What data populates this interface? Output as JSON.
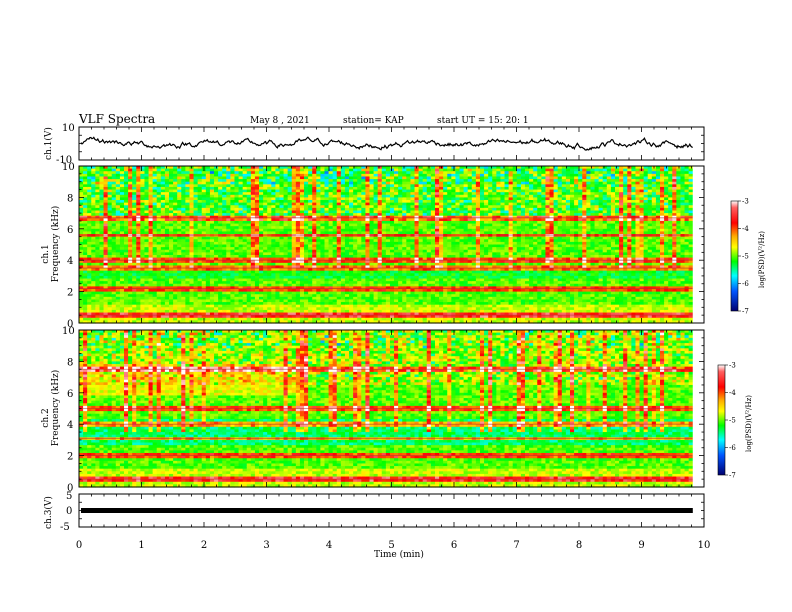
{
  "header": {
    "title": "VLF Spectra",
    "date": "May 8 , 2021",
    "station": "station= KAP",
    "start": "start  UT  =   15: 20: 1"
  },
  "panels": {
    "ch1_wave_label": "ch.1(V)",
    "ch1_spec_label1": "ch.1",
    "ch1_spec_label2": "Frequency (kHz)",
    "ch2_spec_label1": "ch.2",
    "ch2_spec_label2": "Frequency (kHz)",
    "ch3_wave_label": "ch.3(V)",
    "x_label": "Time  (min)"
  },
  "colorbar": {
    "label": "log(PSD)(V²/Hz)",
    "ticks": [
      "-3",
      "-4",
      "-5",
      "-6",
      "-7"
    ],
    "colors": [
      "#ff0000",
      "#ffaa00",
      "#ffff00",
      "#00ff00",
      "#00ffff",
      "#0066ff",
      "#000080"
    ]
  },
  "chart_data": [
    {
      "type": "line",
      "name": "ch.1 waveform",
      "ylabel": "ch.1(V)",
      "ylim": [
        -10,
        10
      ],
      "y_ticks": [
        "10",
        "-10"
      ],
      "xlim": [
        0,
        10
      ],
      "x_data_end": 9.82,
      "baseline": 0,
      "fluctuation_range": [
        -4,
        5
      ]
    },
    {
      "type": "heatmap",
      "name": "ch.1 spectrogram",
      "ylabel": "ch.1 Frequency (kHz)",
      "ylim": [
        0,
        10
      ],
      "y_ticks": [
        "0",
        "2",
        "4",
        "6",
        "8",
        "10"
      ],
      "xlim": [
        0,
        10
      ],
      "colorbar_range": [
        -7,
        -3
      ],
      "line_features_khz": [
        0.5,
        2.2,
        3.5,
        4.0,
        5.6,
        6.7
      ],
      "band_changes_min": [
        6.75
      ]
    },
    {
      "type": "heatmap",
      "name": "ch.2 spectrogram",
      "ylabel": "ch.2 Frequency (kHz)",
      "ylim": [
        0,
        10
      ],
      "y_ticks": [
        "0",
        "2",
        "4",
        "6",
        "8",
        "10"
      ],
      "xlim": [
        0,
        10
      ],
      "colorbar_range": [
        -7,
        -3
      ],
      "line_features_khz": [
        0.5,
        2.0,
        3.1,
        4.0,
        5.0,
        7.5
      ],
      "band_changes_min": [
        6.75
      ]
    },
    {
      "type": "line",
      "name": "ch.3 waveform",
      "ylabel": "ch.3(V)",
      "ylim": [
        -5,
        5
      ],
      "y_ticks": [
        "5",
        "0",
        "-5"
      ],
      "xlim": [
        0,
        10
      ],
      "x_data_end": 9.82,
      "value": 0
    }
  ],
  "x_axis": {
    "range": [
      0,
      10
    ],
    "ticks": [
      "0",
      "1",
      "2",
      "3",
      "4",
      "5",
      "6",
      "7",
      "8",
      "9",
      "10"
    ]
  }
}
